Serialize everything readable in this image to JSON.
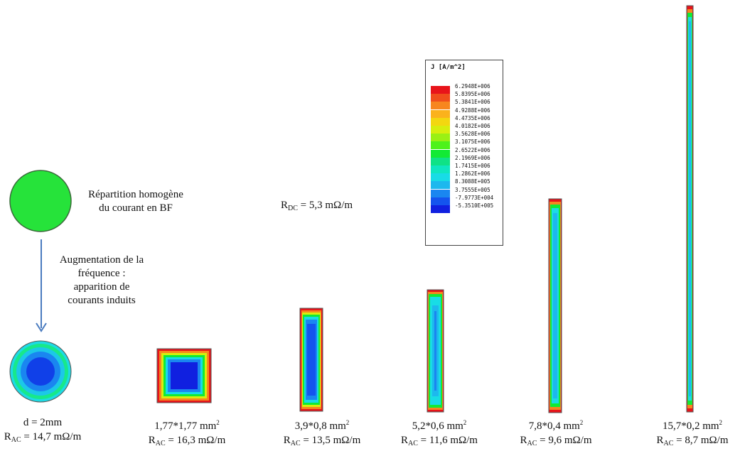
{
  "annotations": {
    "homogeneous_line1": "Répartition homogène",
    "homogeneous_line2": "du courant en BF",
    "freq_line1": "Augmentation de la",
    "freq_line2": "fréquence :",
    "freq_line3": "apparition de",
    "freq_line4": "courants induits",
    "rdc_prefix": "R",
    "rdc_sub": "DC",
    "rdc_value": " = 5,3 mΩ/m"
  },
  "legend": {
    "title": "J [A/m^2]",
    "levels": [
      {
        "label": "6.2948E+006",
        "color": "#e8141a"
      },
      {
        "label": "5.8395E+006",
        "color": "#f04e1c"
      },
      {
        "label": "5.3841E+006",
        "color": "#f7861e"
      },
      {
        "label": "4.9288E+006",
        "color": "#fbb21c"
      },
      {
        "label": "4.4735E+006",
        "color": "#f3d710"
      },
      {
        "label": "4.0182E+006",
        "color": "#d7ee0e"
      },
      {
        "label": "3.5628E+006",
        "color": "#9af014"
      },
      {
        "label": "3.1075E+006",
        "color": "#4ef21a"
      },
      {
        "label": "2.6522E+006",
        "color": "#12ea34"
      },
      {
        "label": "2.1969E+006",
        "color": "#0fe286"
      },
      {
        "label": "1.7415E+006",
        "color": "#0fe6c0"
      },
      {
        "label": "1.2862E+006",
        "color": "#18dce6"
      },
      {
        "label": "8.3088E+005",
        "color": "#1db8ee"
      },
      {
        "label": "3.7555E+005",
        "color": "#1a86f0"
      },
      {
        "label": "-7.9773E+004",
        "color": "#1454ee"
      },
      {
        "label": "-5.3510E+005",
        "color": "#1020e0"
      }
    ]
  },
  "conductors": [
    {
      "dims": "d = 2mm",
      "dims_unit": "",
      "ra_prefix": "R",
      "ra_sub": "AC",
      "ra_value": " = 14,7 mΩ/m"
    },
    {
      "dims": "1,77*1,77 mm",
      "dims_unit": "2",
      "ra_prefix": "R",
      "ra_sub": "AC",
      "ra_value": " = 16,3 mΩ/m"
    },
    {
      "dims": "3,9*0,8 mm",
      "dims_unit": "2",
      "ra_prefix": "R",
      "ra_sub": "AC",
      "ra_value": " = 13,5 mΩ/m"
    },
    {
      "dims": "5,2*0,6 mm",
      "dims_unit": "2",
      "ra_prefix": "R",
      "ra_sub": "AC",
      "ra_value": " = 11,6 mΩ/m"
    },
    {
      "dims": "7,8*0,4 mm",
      "dims_unit": "2",
      "ra_prefix": "R",
      "ra_sub": "AC",
      "ra_value": " = 9,6 mΩ/m"
    },
    {
      "dims": "15,7*0,2 mm",
      "dims_unit": "2",
      "ra_prefix": "R",
      "ra_sub": "AC",
      "ra_value": " = 8,7 mΩ/m"
    }
  ]
}
